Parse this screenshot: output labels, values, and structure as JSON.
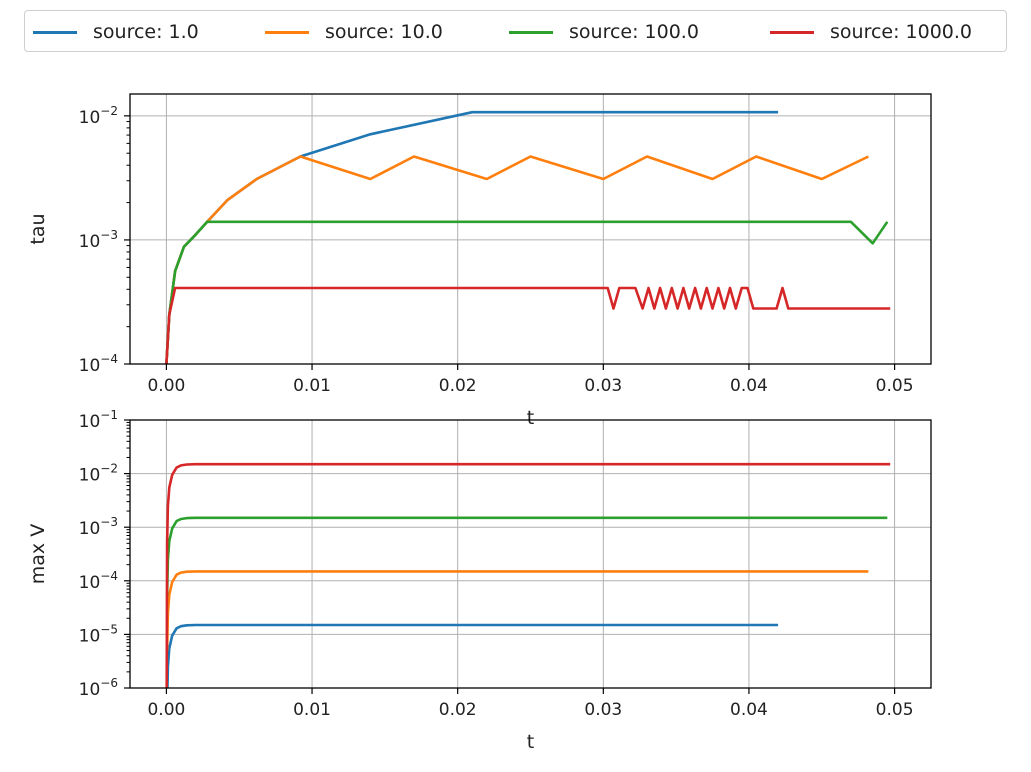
{
  "legend": {
    "placement": "top",
    "items": [
      {
        "label": "source: 1.0",
        "color": "#1f77b4"
      },
      {
        "label": "source: 10.0",
        "color": "#ff7f0e"
      },
      {
        "label": "source: 100.0",
        "color": "#2ca02c"
      },
      {
        "label": "source: 1000.0",
        "color": "#d62728"
      }
    ]
  },
  "chart_data": [
    {
      "type": "line",
      "xlabel": "t",
      "ylabel": "tau",
      "xscale": "linear",
      "yscale": "log",
      "xlim": [
        -0.0025,
        0.0525
      ],
      "ylim": [
        0.0001,
        0.015
      ],
      "grid": true,
      "xticks": [
        {
          "value": 0.0,
          "label": "0.00"
        },
        {
          "value": 0.01,
          "label": "0.01"
        },
        {
          "value": 0.02,
          "label": "0.02"
        },
        {
          "value": 0.03,
          "label": "0.03"
        },
        {
          "value": 0.04,
          "label": "0.04"
        },
        {
          "value": 0.05,
          "label": "0.05"
        }
      ],
      "yticks": [
        {
          "value": 0.0001,
          "base": "10",
          "exp": "−4"
        },
        {
          "value": 0.001,
          "base": "10",
          "exp": "−3"
        },
        {
          "value": 0.01,
          "base": "10",
          "exp": "−2"
        }
      ],
      "series": [
        {
          "name": "source: 1.0",
          "color": "#1f77b4",
          "x": [
            0.0,
            0.0002,
            0.0006,
            0.0012,
            0.002,
            0.0028,
            0.0042,
            0.0062,
            0.0092,
            0.014,
            0.021,
            0.042
          ],
          "y": [
            0.0001,
            0.00025,
            0.00056,
            0.00088,
            0.0011,
            0.0014,
            0.0021,
            0.0031,
            0.0047,
            0.0071,
            0.0107,
            0.0107
          ]
        },
        {
          "name": "source: 10.0",
          "color": "#ff7f0e",
          "x": [
            0.0,
            0.0002,
            0.0006,
            0.0012,
            0.002,
            0.0028,
            0.0042,
            0.0062,
            0.0092,
            0.014,
            0.017,
            0.022,
            0.025,
            0.03,
            0.033,
            0.0375,
            0.0405,
            0.045,
            0.0482
          ],
          "y": [
            0.0001,
            0.00025,
            0.00056,
            0.00088,
            0.0011,
            0.0014,
            0.0021,
            0.0031,
            0.0047,
            0.0031,
            0.0047,
            0.0031,
            0.0047,
            0.0031,
            0.0047,
            0.0031,
            0.0047,
            0.0031,
            0.0047
          ]
        },
        {
          "name": "source: 100.0",
          "color": "#2ca02c",
          "x": [
            0.0,
            0.0002,
            0.0006,
            0.0012,
            0.002,
            0.0028,
            0.047,
            0.0485,
            0.0495
          ],
          "y": [
            0.0001,
            0.00025,
            0.00056,
            0.00088,
            0.0011,
            0.0014,
            0.0014,
            0.00094,
            0.0014
          ]
        },
        {
          "name": "source: 1000.0",
          "color": "#d62728",
          "x": [
            0.0,
            0.0002,
            0.0006,
            0.0303,
            0.0307,
            0.0311,
            0.0315,
            0.0322,
            0.0327,
            0.0331,
            0.0335,
            0.0339,
            0.0343,
            0.0347,
            0.0351,
            0.0355,
            0.0359,
            0.0363,
            0.0367,
            0.0371,
            0.0375,
            0.0379,
            0.0383,
            0.0387,
            0.0391,
            0.0395,
            0.0399,
            0.0403,
            0.0407,
            0.0411,
            0.0415,
            0.0419,
            0.0423,
            0.0427,
            0.0497
          ],
          "y": [
            0.0001,
            0.00025,
            0.00041,
            0.00041,
            0.00028,
            0.00041,
            0.00041,
            0.00041,
            0.00028,
            0.00041,
            0.00028,
            0.00041,
            0.00028,
            0.00041,
            0.00028,
            0.00041,
            0.00028,
            0.00041,
            0.00028,
            0.00041,
            0.00028,
            0.00041,
            0.00028,
            0.00041,
            0.00028,
            0.00041,
            0.00041,
            0.00028,
            0.00028,
            0.00028,
            0.00028,
            0.00028,
            0.00041,
            0.00028,
            0.00028
          ]
        }
      ]
    },
    {
      "type": "line",
      "xlabel": "t",
      "ylabel": "max V",
      "xscale": "linear",
      "yscale": "log",
      "xlim": [
        -0.0025,
        0.0525
      ],
      "ylim": [
        1e-06,
        0.1
      ],
      "grid": true,
      "xticks": [
        {
          "value": 0.0,
          "label": "0.00"
        },
        {
          "value": 0.01,
          "label": "0.01"
        },
        {
          "value": 0.02,
          "label": "0.02"
        },
        {
          "value": 0.03,
          "label": "0.03"
        },
        {
          "value": 0.04,
          "label": "0.04"
        },
        {
          "value": 0.05,
          "label": "0.05"
        }
      ],
      "yticks": [
        {
          "value": 1e-06,
          "base": "10",
          "exp": "−6"
        },
        {
          "value": 1e-05,
          "base": "10",
          "exp": "−5"
        },
        {
          "value": 0.0001,
          "base": "10",
          "exp": "−4"
        },
        {
          "value": 0.001,
          "base": "10",
          "exp": "−3"
        },
        {
          "value": 0.01,
          "base": "10",
          "exp": "−2"
        },
        {
          "value": 0.1,
          "base": "10",
          "exp": "−1"
        }
      ],
      "series": [
        {
          "name": "source: 1.0",
          "color": "#1f77b4",
          "x": [
            5e-05,
            0.0001,
            0.0002,
            0.0004,
            0.0007,
            0.001,
            0.0014,
            0.002,
            0.042
          ],
          "y": [
            5e-07,
            2.5e-06,
            5.5e-06,
            9.5e-06,
            1.3e-05,
            1.42e-05,
            1.48e-05,
            1.5e-05,
            1.5e-05
          ]
        },
        {
          "name": "source: 10.0",
          "color": "#ff7f0e",
          "x": [
            5e-05,
            0.0001,
            0.0002,
            0.0004,
            0.0007,
            0.001,
            0.0014,
            0.002,
            0.0482
          ],
          "y": [
            5e-06,
            2.5e-05,
            5.5e-05,
            9.5e-05,
            0.00013,
            0.000142,
            0.000148,
            0.00015,
            0.00015
          ]
        },
        {
          "name": "source: 100.0",
          "color": "#2ca02c",
          "x": [
            5e-05,
            0.0001,
            0.0002,
            0.0004,
            0.0007,
            0.001,
            0.0014,
            0.002,
            0.0495
          ],
          "y": [
            5e-05,
            0.00025,
            0.00055,
            0.00095,
            0.0013,
            0.00142,
            0.00148,
            0.0015,
            0.0015
          ]
        },
        {
          "name": "source: 1000.0",
          "color": "#d62728",
          "x": [
            2e-05,
            5e-05,
            0.0001,
            0.0002,
            0.0004,
            0.0007,
            0.001,
            0.0014,
            0.002,
            0.0497
          ],
          "y": [
            1e-06,
            0.0005,
            0.0025,
            0.0055,
            0.0095,
            0.013,
            0.0142,
            0.0148,
            0.015,
            0.015
          ]
        }
      ]
    }
  ]
}
